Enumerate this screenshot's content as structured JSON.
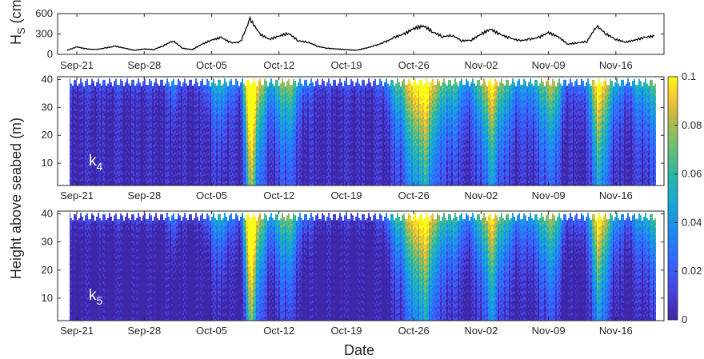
{
  "chart_data": [
    {
      "type": "line",
      "ylabel_main": "H",
      "ylabel_sub": "S",
      "ylabel_unit": "(cm)",
      "ylim": [
        0,
        600
      ],
      "yticks": [
        0,
        300,
        600
      ],
      "xlim": [
        "2018-09-19",
        "2018-11-21"
      ],
      "xtick_labels": [
        "Sep-21",
        "Sep-28",
        "Oct-05",
        "Oct-12",
        "Oct-19",
        "Oct-26",
        "Nov-02",
        "Nov-09",
        "Nov-16"
      ],
      "series": [
        {
          "x": [
            "2018-09-20",
            "2018-09-21",
            "2018-09-22",
            "2018-09-23",
            "2018-09-24",
            "2018-09-25",
            "2018-09-26",
            "2018-09-27",
            "2018-09-28",
            "2018-09-29",
            "2018-09-30",
            "2018-10-01",
            "2018-10-02",
            "2018-10-03",
            "2018-10-04",
            "2018-10-05",
            "2018-10-06",
            "2018-10-07",
            "2018-10-08",
            "2018-10-09",
            "2018-10-10",
            "2018-10-11",
            "2018-10-12",
            "2018-10-13",
            "2018-10-14",
            "2018-10-15",
            "2018-10-16",
            "2018-10-17",
            "2018-10-18",
            "2018-10-19",
            "2018-10-20",
            "2018-10-21",
            "2018-10-22",
            "2018-10-23",
            "2018-10-24",
            "2018-10-25",
            "2018-10-26",
            "2018-10-27",
            "2018-10-28",
            "2018-10-29",
            "2018-10-30",
            "2018-10-31",
            "2018-11-01",
            "2018-11-02",
            "2018-11-03",
            "2018-11-04",
            "2018-11-05",
            "2018-11-06",
            "2018-11-07",
            "2018-11-08",
            "2018-11-09",
            "2018-11-10",
            "2018-11-11",
            "2018-11-12",
            "2018-11-13",
            "2018-11-14",
            "2018-11-15",
            "2018-11-16",
            "2018-11-17",
            "2018-11-18",
            "2018-11-19",
            "2018-11-20"
          ],
          "values": [
            60,
            110,
            80,
            70,
            95,
            120,
            90,
            60,
            80,
            70,
            130,
            200,
            90,
            70,
            150,
            210,
            250,
            170,
            180,
            520,
            300,
            220,
            270,
            310,
            200,
            180,
            120,
            90,
            80,
            70,
            60,
            90,
            130,
            180,
            250,
            300,
            380,
            420,
            330,
            260,
            280,
            200,
            210,
            300,
            370,
            290,
            240,
            200,
            220,
            250,
            320,
            260,
            150,
            170,
            190,
            420,
            300,
            220,
            180,
            210,
            250,
            270
          ]
        }
      ]
    },
    {
      "type": "heatmap",
      "panel_label": "k",
      "panel_label_sub": "4",
      "ylim": [
        2,
        41
      ],
      "yticks": [
        10,
        20,
        30,
        40
      ],
      "xtick_labels": [
        "Sep-21",
        "Sep-28",
        "Oct-05",
        "Oct-12",
        "Oct-19",
        "Oct-26",
        "Nov-02",
        "Nov-09",
        "Nov-16"
      ]
    },
    {
      "type": "heatmap",
      "panel_label": "k",
      "panel_label_sub": "5",
      "ylim": [
        2,
        41
      ],
      "yticks": [
        10,
        20,
        30,
        40
      ],
      "xtick_labels": [
        "Sep-21",
        "Sep-28",
        "Oct-05",
        "Oct-12",
        "Oct-19",
        "Oct-26",
        "Nov-02",
        "Nov-09",
        "Nov-16"
      ]
    }
  ],
  "shared": {
    "ylabel": "Height above seabed (m)",
    "xlabel": "Date",
    "colorbar": {
      "ticks": [
        "0.1",
        "0.08",
        "0.06",
        "0.04",
        "0.02",
        "0"
      ],
      "range": [
        0,
        0.1
      ],
      "colormap": [
        "#3e26a8",
        "#4743e0",
        "#3366ff",
        "#1e89f0",
        "#16a8d5",
        "#2bb7a4",
        "#71bf6e",
        "#c5b840",
        "#f9c831",
        "#f9fb15"
      ]
    },
    "colors": {
      "axis": "#262626",
      "line": "#000000",
      "tag": "#ffffff"
    }
  }
}
